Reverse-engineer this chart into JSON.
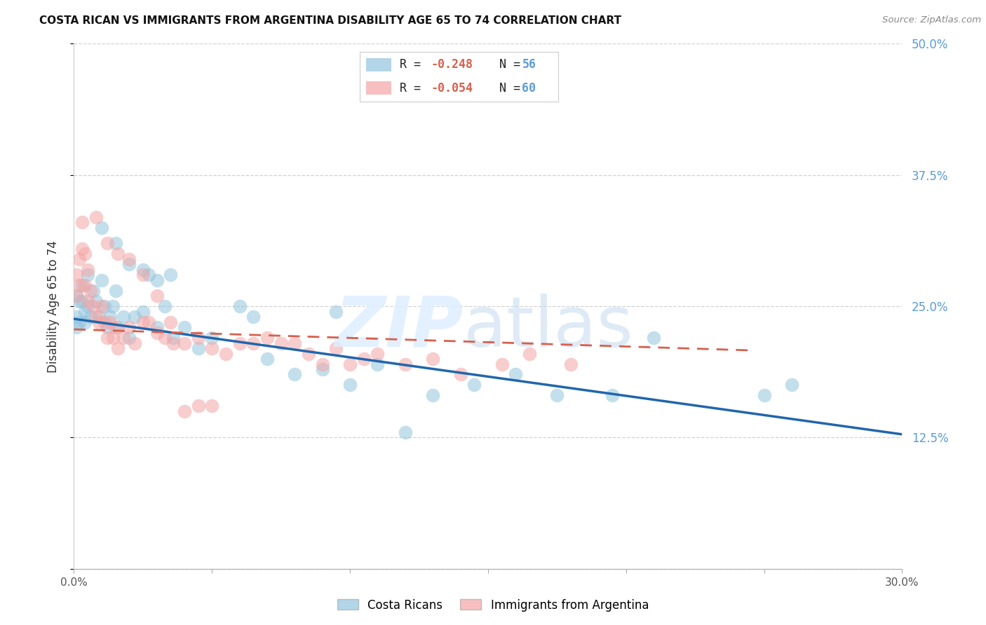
{
  "title": "COSTA RICAN VS IMMIGRANTS FROM ARGENTINA DISABILITY AGE 65 TO 74 CORRELATION CHART",
  "source": "Source: ZipAtlas.com",
  "ylabel": "Disability Age 65 to 74",
  "x_min": 0.0,
  "x_max": 0.3,
  "y_min": 0.0,
  "y_max": 0.5,
  "x_ticks": [
    0.0,
    0.05,
    0.1,
    0.15,
    0.2,
    0.25,
    0.3
  ],
  "x_tick_labels": [
    "0.0%",
    "",
    "",
    "",
    "",
    "",
    "30.0%"
  ],
  "y_ticks": [
    0.0,
    0.125,
    0.25,
    0.375,
    0.5
  ],
  "y_tick_labels_right": [
    "",
    "12.5%",
    "25.0%",
    "37.5%",
    "50.0%"
  ],
  "legend_r1_val": "-0.248",
  "legend_n1_val": "56",
  "legend_r2_val": "-0.054",
  "legend_n2_val": "60",
  "color_blue": "#92c5de",
  "color_pink": "#f4a5a5",
  "color_blue_line": "#2166ac",
  "color_pink_line": "#d6604d",
  "color_right_axis": "#5b9bd5",
  "blue_line_x": [
    0.0,
    0.3
  ],
  "blue_line_y": [
    0.238,
    0.128
  ],
  "pink_line_x": [
    0.0,
    0.245
  ],
  "pink_line_y": [
    0.228,
    0.208
  ],
  "costa_rican_x": [
    0.001,
    0.001,
    0.001,
    0.002,
    0.002,
    0.003,
    0.003,
    0.004,
    0.004,
    0.005,
    0.005,
    0.006,
    0.007,
    0.008,
    0.009,
    0.01,
    0.011,
    0.012,
    0.013,
    0.014,
    0.015,
    0.016,
    0.018,
    0.02,
    0.022,
    0.025,
    0.027,
    0.03,
    0.033,
    0.036,
    0.04,
    0.045,
    0.05,
    0.06,
    0.065,
    0.07,
    0.08,
    0.09,
    0.095,
    0.1,
    0.11,
    0.12,
    0.13,
    0.145,
    0.16,
    0.175,
    0.195,
    0.21,
    0.25,
    0.26,
    0.01,
    0.015,
    0.02,
    0.025,
    0.03,
    0.035
  ],
  "costa_rican_y": [
    0.24,
    0.26,
    0.23,
    0.255,
    0.235,
    0.27,
    0.255,
    0.245,
    0.235,
    0.28,
    0.25,
    0.24,
    0.265,
    0.255,
    0.24,
    0.275,
    0.25,
    0.23,
    0.24,
    0.25,
    0.265,
    0.23,
    0.24,
    0.22,
    0.24,
    0.245,
    0.28,
    0.23,
    0.25,
    0.22,
    0.23,
    0.21,
    0.22,
    0.25,
    0.24,
    0.2,
    0.185,
    0.19,
    0.245,
    0.175,
    0.195,
    0.13,
    0.165,
    0.175,
    0.185,
    0.165,
    0.165,
    0.22,
    0.165,
    0.175,
    0.325,
    0.31,
    0.29,
    0.285,
    0.275,
    0.28
  ],
  "argentina_x": [
    0.001,
    0.001,
    0.002,
    0.002,
    0.003,
    0.003,
    0.004,
    0.004,
    0.005,
    0.005,
    0.006,
    0.007,
    0.008,
    0.009,
    0.01,
    0.011,
    0.012,
    0.013,
    0.014,
    0.015,
    0.016,
    0.018,
    0.02,
    0.022,
    0.025,
    0.027,
    0.03,
    0.033,
    0.036,
    0.04,
    0.045,
    0.05,
    0.055,
    0.06,
    0.065,
    0.07,
    0.075,
    0.08,
    0.085,
    0.09,
    0.095,
    0.1,
    0.105,
    0.11,
    0.12,
    0.13,
    0.14,
    0.155,
    0.165,
    0.18,
    0.008,
    0.012,
    0.016,
    0.02,
    0.025,
    0.03,
    0.035,
    0.04,
    0.045,
    0.05
  ],
  "argentina_y": [
    0.28,
    0.26,
    0.295,
    0.27,
    0.305,
    0.33,
    0.3,
    0.27,
    0.285,
    0.255,
    0.265,
    0.25,
    0.24,
    0.235,
    0.25,
    0.235,
    0.22,
    0.235,
    0.22,
    0.23,
    0.21,
    0.22,
    0.23,
    0.215,
    0.235,
    0.235,
    0.225,
    0.22,
    0.215,
    0.215,
    0.22,
    0.21,
    0.205,
    0.215,
    0.215,
    0.22,
    0.215,
    0.215,
    0.205,
    0.195,
    0.21,
    0.195,
    0.2,
    0.205,
    0.195,
    0.2,
    0.185,
    0.195,
    0.205,
    0.195,
    0.335,
    0.31,
    0.3,
    0.295,
    0.28,
    0.26,
    0.235,
    0.15,
    0.155,
    0.155
  ]
}
